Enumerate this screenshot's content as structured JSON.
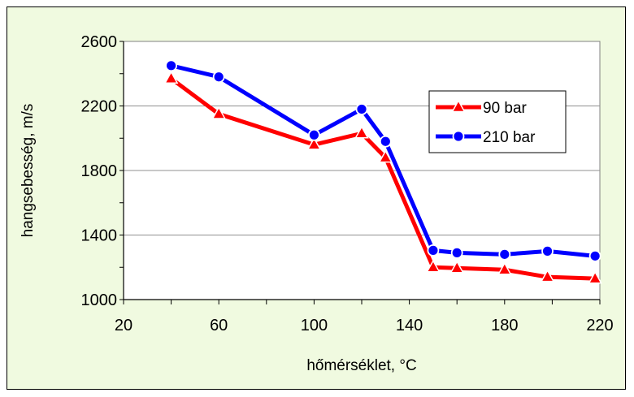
{
  "chart_data": {
    "type": "line",
    "title": "",
    "xlabel": "hőmérséklet, °C",
    "ylabel": "hangsebesség, m/s",
    "xlim": [
      20,
      220
    ],
    "ylim": [
      1000,
      2600
    ],
    "xticks": [
      20,
      60,
      100,
      140,
      180,
      220
    ],
    "yticks": [
      1000,
      1400,
      1800,
      2200,
      2600
    ],
    "grid": "horizontal",
    "legend_position": "right",
    "series": [
      {
        "name": "90 bar",
        "color": "#ff0000",
        "marker": "triangle",
        "x": [
          40,
          60,
          100,
          120,
          130,
          150,
          160,
          180,
          198,
          218
        ],
        "y": [
          2370,
          2150,
          1960,
          2030,
          1880,
          1200,
          1195,
          1185,
          1140,
          1130
        ]
      },
      {
        "name": "210 bar",
        "color": "#0000ff",
        "marker": "circle",
        "x": [
          40,
          60,
          100,
          120,
          130,
          150,
          160,
          180,
          198,
          218
        ],
        "y": [
          2450,
          2380,
          2020,
          2180,
          1980,
          1305,
          1290,
          1280,
          1300,
          1270
        ]
      }
    ]
  }
}
